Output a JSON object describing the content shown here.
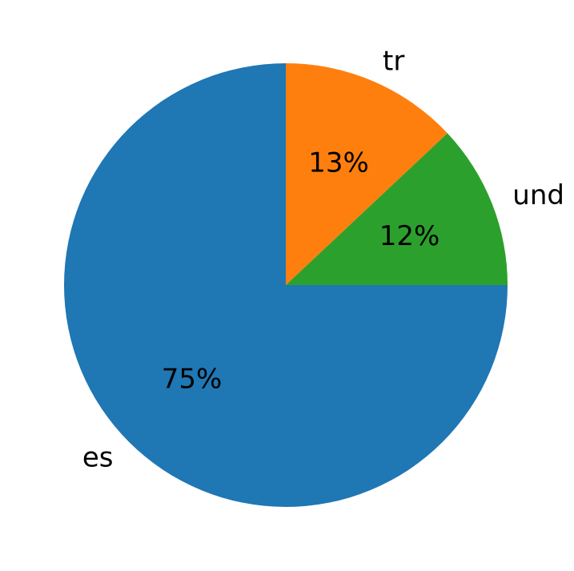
{
  "chart_data": {
    "type": "pie",
    "title": "",
    "labels": [
      "es",
      "tr",
      "und"
    ],
    "values": [
      75,
      13,
      12
    ],
    "value_labels": [
      "75%",
      "13%",
      "12%"
    ],
    "colors": [
      "#1f77b4",
      "#ff7f0e",
      "#2ca02c"
    ],
    "start_angle_deg": 0,
    "direction": "clockwise",
    "legend": "none"
  }
}
